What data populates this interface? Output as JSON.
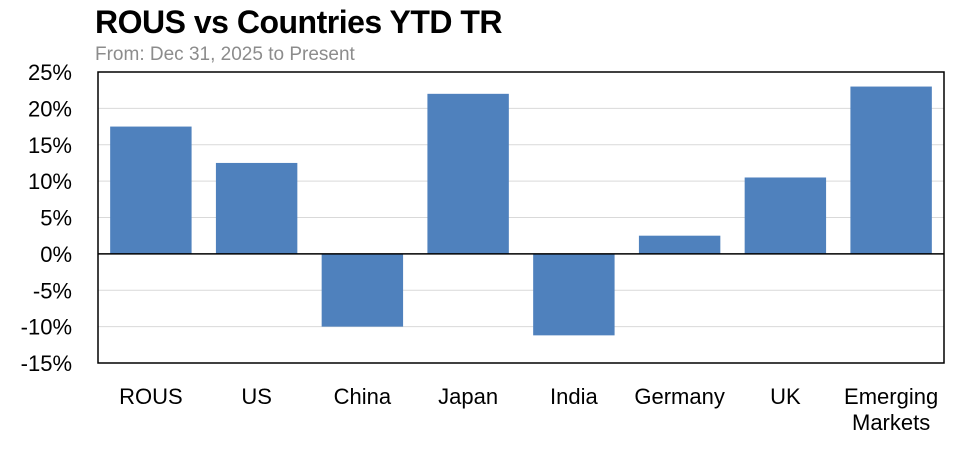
{
  "chart_data": {
    "type": "bar",
    "title": "ROUS vs Countries YTD TR",
    "subtitle": "From: Dec 31, 2025 to Present",
    "categories": [
      "ROUS",
      "US",
      "China",
      "Japan",
      "India",
      "Germany",
      "UK",
      "Emerging Markets"
    ],
    "category_lines": [
      [
        "ROUS"
      ],
      [
        "US"
      ],
      [
        "China"
      ],
      [
        "Japan"
      ],
      [
        "India"
      ],
      [
        "Germany"
      ],
      [
        "UK"
      ],
      [
        "Emerging",
        "Markets"
      ]
    ],
    "values": [
      17.5,
      12.5,
      -10.0,
      22.0,
      -11.2,
      2.5,
      10.5,
      23.0
    ],
    "ylim": [
      -15,
      25
    ],
    "yticks": [
      -15,
      -10,
      -5,
      0,
      5,
      10,
      15,
      20,
      25
    ],
    "ytick_labels": [
      "-15%",
      "-10%",
      "-5%",
      "0%",
      "5%",
      "10%",
      "15%",
      "20%",
      "25%"
    ],
    "grid": true,
    "xlabel": "",
    "ylabel": ""
  },
  "colors": {
    "bar": "#4f81bd",
    "grid": "#d9d9d9",
    "axis": "#000000"
  }
}
